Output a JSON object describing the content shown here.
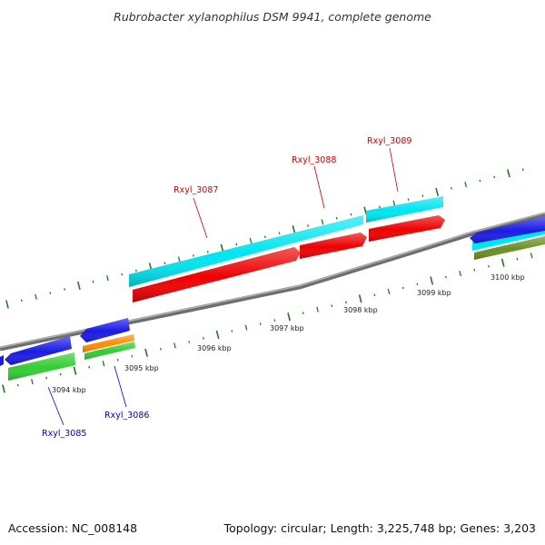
{
  "title": "Rubrobacter xylanophilus DSM 9941, complete genome",
  "footer": {
    "accession": "Accession: NC_008148",
    "topology": "Topology: circular; Length: 3,225,748 bp; Genes: 3,203"
  },
  "colors": {
    "backbone": "#888888",
    "tick": "#1f7a1f",
    "forward_label": "#cc0000",
    "reverse_label": "#0000cc",
    "cyan": "#00e5f0",
    "red": "#ee0000",
    "blue": "#1a1ae6",
    "green": "#33cc33",
    "orange": "#ff8c00",
    "olive": "#6b8e23"
  },
  "kbp_labels": [
    {
      "pos_kbp": 3094,
      "label": "3094 kbp"
    },
    {
      "pos_kbp": 3095,
      "label": "3095 kbp"
    },
    {
      "pos_kbp": 3096,
      "label": "3096 kbp"
    },
    {
      "pos_kbp": 3097,
      "label": "3097 kbp"
    },
    {
      "pos_kbp": 3098,
      "label": "3098 kbp"
    },
    {
      "pos_kbp": 3099,
      "label": "3099 kbp"
    },
    {
      "pos_kbp": 3100,
      "label": "3100 kbp"
    }
  ],
  "gene_labels": {
    "forward": [
      "Rxyl_3087",
      "Rxyl_3088",
      "Rxyl_3089"
    ],
    "reverse": [
      "Rxyl_3085",
      "Rxyl_3086"
    ]
  }
}
